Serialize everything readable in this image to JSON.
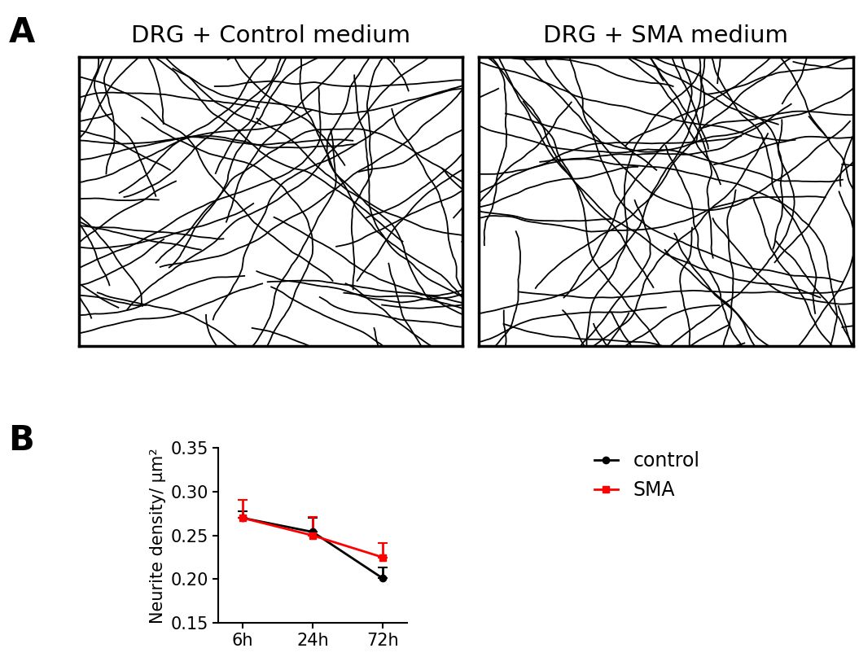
{
  "panel_labels": [
    "A",
    "B"
  ],
  "image_titles": [
    "DRG + Control medium",
    "DRG + SMA medium"
  ],
  "chart_data": {
    "type": "line",
    "y_label": "Neurite density/ µm²",
    "categories": [
      "6h",
      "24h",
      "72h"
    ],
    "series": [
      {
        "name": "control",
        "color": "#000000",
        "marker": "circle",
        "values": [
          0.27,
          0.254,
          0.201
        ],
        "errors": [
          0.008,
          0.016,
          0.012
        ]
      },
      {
        "name": "SMA",
        "color": "#ff0000",
        "marker": "square",
        "values": [
          0.27,
          0.25,
          0.225
        ],
        "errors": [
          0.021,
          0.021,
          0.016
        ]
      }
    ],
    "ylim": [
      0.15,
      0.35
    ],
    "yticks": [
      {
        "value": 0.15,
        "label": "0.15"
      },
      {
        "value": 0.2,
        "label": "0.20"
      },
      {
        "value": 0.25,
        "label": "0.25"
      },
      {
        "value": 0.3,
        "label": "0.30"
      },
      {
        "value": 0.35,
        "label": "0.35"
      }
    ],
    "legend": "upper left"
  }
}
